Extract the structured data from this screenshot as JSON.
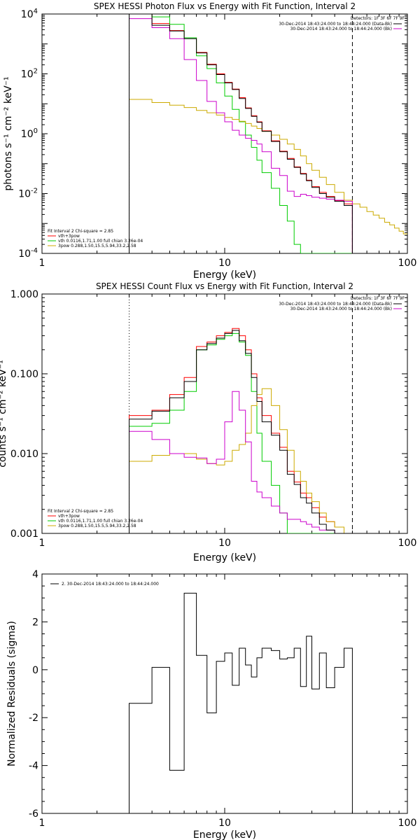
{
  "chart_data": [
    {
      "type": "line",
      "title": "SPEX HESSI Photon Flux vs Energy with Fit Function, Interval 2",
      "xlabel": "Energy (keV)",
      "ylabel": "photons s⁻¹ cm⁻² keV⁻¹",
      "xscale": "log",
      "yscale": "log",
      "xlim": [
        1,
        100
      ],
      "ylim": [
        0.0001,
        10000
      ],
      "x_ticks": [
        {
          "v": 1,
          "label": "1"
        },
        {
          "v": 10,
          "label": "10"
        },
        {
          "v": 100,
          "label": "100"
        }
      ],
      "y_ticks": [
        {
          "v": 0.0001,
          "base": "10",
          "exp": "-4"
        },
        {
          "v": 0.01,
          "base": "10",
          "exp": "-2"
        },
        {
          "v": 1,
          "base": "10",
          "exp": "0"
        },
        {
          "v": 100,
          "base": "10",
          "exp": "2"
        },
        {
          "v": 10000,
          "base": "10",
          "exp": "4"
        }
      ],
      "detectors_label": "Detectors: 1F 3F 6F 7F 9F",
      "interval_labels": [
        {
          "text": "30-Dec-2014 18:43:24.000 to 18:44:24.000 (Data-Bk)",
          "color": "#000000"
        },
        {
          "text": "30-Dec-2014 18:43:24.000 to 18:44:24.000 (Bk)",
          "color": "#cc00cc"
        }
      ],
      "fit_header": "Fit Interval 2   Chi-square = 2.85",
      "fit_legend": [
        {
          "text": "vth+3pow",
          "color": "#ff0000"
        },
        {
          "text": "vth 0.0116,1.71,1.00  full chian 3.26e-04",
          "color": "#00cc00"
        },
        {
          "text": "3pow 0.288,1.50,15.5,5.94,33.2,2.58",
          "color": "#ccaa00"
        }
      ],
      "vlines": [
        {
          "x": 3.0,
          "style": "dotted",
          "color": "#000000"
        },
        {
          "x": 50,
          "style": "dashed",
          "color": "#000000"
        }
      ],
      "edges": [
        3.0,
        4.0,
        5.0,
        6.0,
        7.0,
        8.0,
        9.0,
        10.0,
        11.0,
        12.0,
        13.0,
        14.0,
        15.0,
        16.0,
        18.0,
        20.0,
        22.0,
        24.0,
        26.0,
        28.0,
        30.0,
        33.0,
        36.0,
        40.0,
        45.0,
        50.0
      ],
      "series": [
        {
          "name": "data",
          "color": "#000000",
          "values": [
            10000,
            4200,
            2700,
            1500,
            500,
            200,
            95,
            50,
            30,
            15,
            7.0,
            3.8,
            2.4,
            1.2,
            0.55,
            0.25,
            0.14,
            0.075,
            0.045,
            0.027,
            0.016,
            0.01,
            0.0075,
            0.0055,
            0.004
          ]
        },
        {
          "name": "model",
          "color": "#ff0000",
          "values": [
            10000,
            4800,
            2800,
            1600,
            520,
            210,
            100,
            52,
            31,
            16,
            7.3,
            4.0,
            2.5,
            1.25,
            0.58,
            0.26,
            0.15,
            0.078,
            0.047,
            0.028,
            0.017,
            0.011,
            0.008,
            0.0058,
            0.0045
          ]
        },
        {
          "name": "vth",
          "color": "#00cc00",
          "values": [
            10000,
            8000,
            4500,
            1600,
            400,
            150,
            50,
            18,
            6.5,
            2.5,
            0.9,
            0.35,
            0.13,
            0.05,
            0.015,
            0.004,
            0.0012,
            0.0002,
            0.0001,
            9e-05,
            8e-05,
            8e-05,
            8e-05,
            8e-05,
            8e-05
          ]
        },
        {
          "name": "3pow",
          "color": "#ccaa00",
          "values": [
            14,
            11,
            9,
            7.5,
            6,
            5,
            4.2,
            3.5,
            3,
            2.6,
            2.2,
            1.8,
            1.5,
            1.2,
            0.9,
            0.65,
            0.45,
            0.3,
            0.18,
            0.1,
            0.06,
            0.035,
            0.02,
            0.011,
            0.006
          ],
          "tail_edges": [
            50,
            55,
            60,
            65,
            70,
            75,
            80,
            85,
            90,
            95,
            100
          ],
          "tail_values": [
            0.0045,
            0.0035,
            0.0025,
            0.0019,
            0.0015,
            0.0011,
            0.0009,
            0.0007,
            0.00055,
            0.00045
          ]
        },
        {
          "name": "background",
          "color": "#cc00cc",
          "values": [
            7000,
            3500,
            1500,
            300,
            60,
            12,
            5,
            2.5,
            1.3,
            0.9,
            0.7,
            0.6,
            0.45,
            0.25,
            0.07,
            0.04,
            0.012,
            0.008,
            0.0095,
            0.0085,
            0.0075,
            0.007,
            0.0065,
            0.006,
            0.0055
          ]
        }
      ]
    },
    {
      "type": "line",
      "title": "SPEX HESSI Count Flux vs Energy with Fit Function, Interval 2",
      "xlabel": "Energy (keV)",
      "ylabel": "counts s⁻¹ cm⁻² keV⁻¹",
      "xscale": "log",
      "yscale": "log",
      "xlim": [
        1,
        100
      ],
      "ylim": [
        0.001,
        1.0
      ],
      "x_ticks": [
        {
          "v": 1,
          "label": "1"
        },
        {
          "v": 10,
          "label": "10"
        },
        {
          "v": 100,
          "label": "100"
        }
      ],
      "y_ticks": [
        {
          "v": 0.001,
          "label": "0.001"
        },
        {
          "v": 0.01,
          "label": "0.010"
        },
        {
          "v": 0.1,
          "label": "0.100"
        },
        {
          "v": 1,
          "label": "1.000"
        }
      ],
      "detectors_label": "Detectors: 1F 3F 6F 7F 9F",
      "interval_labels": [
        {
          "text": "30-Dec-2014 18:43:24.000 to 18:44:24.000 (Data-Bk)",
          "color": "#000000"
        },
        {
          "text": "30-Dec-2014 18:43:24.000 to 18:44:24.000 (Bk)",
          "color": "#cc00cc"
        }
      ],
      "fit_header": "Fit Interval 2   Chi-square = 2.85",
      "fit_legend": [
        {
          "text": "vth+3pow",
          "color": "#ff0000"
        },
        {
          "text": "vth 0.0116,1.71,1.00  full chian 3.26e-04",
          "color": "#00cc00"
        },
        {
          "text": "3pow 0.288,1.50,15.5,5.94,33.2,2.58",
          "color": "#ccaa00"
        }
      ],
      "vlines": [
        {
          "x": 3.0,
          "style": "dotted",
          "color": "#000000"
        },
        {
          "x": 50,
          "style": "dashed",
          "color": "#000000"
        }
      ],
      "edges": [
        3.0,
        4.0,
        5.0,
        6.0,
        7.0,
        8.0,
        9.0,
        10.0,
        11.0,
        12.0,
        13.0,
        14.0,
        15.0,
        16.0,
        18.0,
        20.0,
        22.0,
        24.0,
        26.0,
        28.0,
        30.0,
        33.0,
        36.0,
        40.0,
        45.0,
        50.0
      ],
      "series": [
        {
          "name": "data",
          "color": "#000000",
          "values": [
            0.027,
            0.034,
            0.05,
            0.08,
            0.2,
            0.24,
            0.28,
            0.32,
            0.35,
            0.26,
            0.18,
            0.09,
            0.045,
            0.025,
            0.017,
            0.011,
            0.0055,
            0.0041,
            0.0028,
            0.0024,
            0.0018,
            0.0013,
            0.0011,
            0.0009,
            0.0008
          ]
        },
        {
          "name": "model",
          "color": "#ff0000",
          "values": [
            0.03,
            0.035,
            0.055,
            0.09,
            0.22,
            0.25,
            0.3,
            0.33,
            0.37,
            0.3,
            0.2,
            0.1,
            0.05,
            0.03,
            0.018,
            0.012,
            0.006,
            0.0044,
            0.0032,
            0.0028,
            0.0021,
            0.0016,
            0.0014,
            0.0012,
            0.001
          ]
        },
        {
          "name": "vth",
          "color": "#00cc00",
          "values": [
            0.022,
            0.024,
            0.035,
            0.06,
            0.2,
            0.23,
            0.27,
            0.3,
            0.32,
            0.25,
            0.17,
            0.06,
            0.018,
            0.008,
            0.004,
            0.0018,
            0.001,
            0.0008,
            0.0008,
            0.0008,
            0.0008,
            0.0008,
            0.0008,
            0.0008,
            0.0008
          ]
        },
        {
          "name": "3pow",
          "color": "#ccaa00",
          "values": [
            0.008,
            0.0095,
            0.01,
            0.01,
            0.0085,
            0.0075,
            0.0072,
            0.008,
            0.011,
            0.013,
            0.018,
            0.04,
            0.055,
            0.065,
            0.04,
            0.02,
            0.011,
            0.006,
            0.0045,
            0.0032,
            0.0025,
            0.0018,
            0.0014,
            0.0012,
            0.001
          ]
        },
        {
          "name": "background",
          "color": "#cc00cc",
          "values": [
            0.019,
            0.015,
            0.01,
            0.009,
            0.0088,
            0.0075,
            0.0085,
            0.025,
            0.06,
            0.035,
            0.014,
            0.0045,
            0.0033,
            0.0028,
            0.0022,
            0.0018,
            0.0015,
            0.0015,
            0.0014,
            0.0013,
            0.0012,
            0.0011,
            0.0011,
            0.001,
            0.0009
          ]
        }
      ]
    },
    {
      "type": "line",
      "title": "",
      "xlabel": "Energy (keV)",
      "ylabel": "Normalized Residuals (sigma)",
      "xscale": "log",
      "yscale": "linear",
      "xlim": [
        1,
        100
      ],
      "ylim": [
        -6,
        4
      ],
      "x_ticks": [
        {
          "v": 1,
          "label": "1"
        },
        {
          "v": 10,
          "label": "10"
        },
        {
          "v": 100,
          "label": "100"
        }
      ],
      "y_ticks": [
        {
          "v": -6,
          "label": "-6"
        },
        {
          "v": -4,
          "label": "-4"
        },
        {
          "v": -2,
          "label": "-2"
        },
        {
          "v": 0,
          "label": "0"
        },
        {
          "v": 2,
          "label": "2"
        },
        {
          "v": 4,
          "label": "4"
        }
      ],
      "legend": "2. 30-Dec-2014 18:43:24.000 to 18:44:24.000",
      "edges": [
        3.0,
        4.0,
        5.0,
        6.0,
        7.0,
        8.0,
        9.0,
        10.0,
        11.0,
        12.0,
        13.0,
        14.0,
        15.0,
        16.0,
        18.0,
        20.0,
        22.0,
        24.0,
        26.0,
        28.0,
        30.0,
        33.0,
        36.0,
        40.0,
        45.0,
        50.0
      ],
      "series": [
        {
          "name": "residuals",
          "color": "#000000",
          "values": [
            -1.4,
            0.1,
            -4.2,
            3.2,
            0.6,
            -1.8,
            0.35,
            0.7,
            -0.65,
            0.9,
            0.2,
            -0.3,
            0.5,
            0.9,
            0.8,
            0.45,
            0.5,
            0.9,
            -0.7,
            1.4,
            -0.8,
            0.7,
            -0.75,
            0.1,
            0.9
          ]
        }
      ]
    }
  ]
}
